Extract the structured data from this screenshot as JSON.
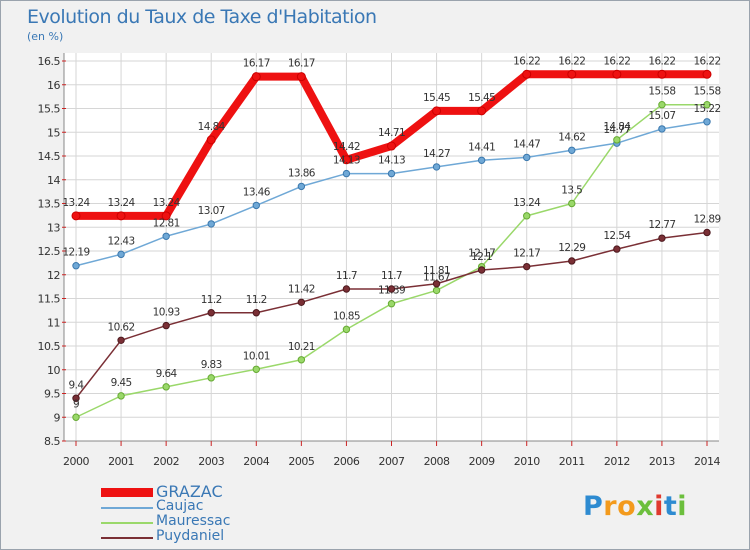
{
  "header": {
    "title": "Evolution du Taux de Taxe d'Habitation",
    "unit": "(en %)"
  },
  "logo": {
    "letters": [
      {
        "ch": "P",
        "color": "#2e8bd1"
      },
      {
        "ch": "r",
        "color": "#f39a1c"
      },
      {
        "ch": "o",
        "color": "#f39a1c"
      },
      {
        "ch": "x",
        "color": "#6cbf3d"
      },
      {
        "ch": "i",
        "color": "#e03a2f"
      },
      {
        "ch": "t",
        "color": "#2e8bd1"
      },
      {
        "ch": "i",
        "color": "#6cbf3d"
      }
    ]
  },
  "chart_data": {
    "type": "line",
    "title": "Evolution du Taux de Taxe d'Habitation",
    "subtitle": "(en %)",
    "x": [
      2000,
      2001,
      2002,
      2003,
      2004,
      2005,
      2006,
      2007,
      2008,
      2009,
      2010,
      2011,
      2012,
      2013,
      2014
    ],
    "ylim": [
      8.5,
      16.5
    ],
    "yticks": [
      8.5,
      9,
      9.5,
      10,
      10.5,
      11,
      11.5,
      12,
      12.5,
      13,
      13.5,
      14,
      14.5,
      15,
      15.5,
      16,
      16.5
    ],
    "grid": true,
    "legend_position": "bottom-left",
    "series": [
      {
        "name": "GRAZAC",
        "color": "#ee1111",
        "values": [
          13.24,
          13.24,
          13.24,
          14.84,
          16.17,
          16.17,
          14.42,
          14.71,
          15.45,
          15.45,
          16.22,
          16.22,
          16.22,
          16.22,
          16.22
        ]
      },
      {
        "name": "Caujac",
        "color": "#6fa8d6",
        "values": [
          12.19,
          12.43,
          12.81,
          13.07,
          13.46,
          13.86,
          14.13,
          14.13,
          14.27,
          14.41,
          14.47,
          14.62,
          14.77,
          15.07,
          15.22
        ]
      },
      {
        "name": "Mauressac",
        "color": "#9ad86a",
        "values": [
          9.0,
          9.45,
          9.64,
          9.83,
          10.01,
          10.21,
          10.85,
          11.39,
          11.67,
          12.17,
          13.24,
          13.5,
          14.84,
          15.58,
          15.58
        ]
      },
      {
        "name": "Puydaniel",
        "color": "#7a2f35",
        "values": [
          9.4,
          10.62,
          10.93,
          11.2,
          11.2,
          11.42,
          11.7,
          11.7,
          11.81,
          12.1,
          12.17,
          12.29,
          12.54,
          12.77,
          12.89
        ]
      }
    ],
    "labels": [
      [
        "13.24",
        "13.24",
        "13.24",
        "14.84",
        "16.17",
        "16.17",
        "14.42",
        "14.71",
        "15.45",
        "15.45",
        "16.22",
        "16.22",
        "16.22",
        "16.22",
        "16.22"
      ],
      [
        "12.19",
        "12.43",
        "12.81",
        "13.07",
        "13.46",
        "13.86",
        "14.13",
        "14.13",
        "14.27",
        "14.41",
        "14.47",
        "14.62",
        "14.77",
        "15.07",
        "15.22"
      ],
      [
        "9",
        "9.45",
        "9.64",
        "9.83",
        "10.01",
        "10.21",
        "10.85",
        "11.39",
        "11.67",
        "12.17",
        "13.24",
        "13.5",
        "14.84",
        "15.58",
        "15.58"
      ],
      [
        "9.4",
        "10.62",
        "10.93",
        "11.2",
        "11.2",
        "11.42",
        "11.7",
        "11.7",
        "11.81",
        "12.1",
        "12.17",
        "12.29",
        "12.54",
        "12.77",
        "12.89"
      ]
    ]
  }
}
